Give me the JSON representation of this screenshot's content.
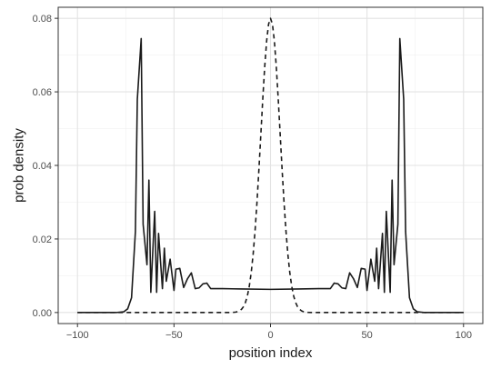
{
  "chart_data": {
    "type": "line",
    "xlabel": "position index",
    "ylabel": "prob density",
    "xlim": [
      -110,
      110
    ],
    "ylim": [
      -0.003,
      0.083
    ],
    "grid": true,
    "x_ticks": [
      -100,
      -50,
      0,
      50,
      100
    ],
    "x_tick_labels": [
      "−100",
      "−50",
      "0",
      "50",
      "100"
    ],
    "y_ticks": [
      0,
      0.02,
      0.04,
      0.06,
      0.08
    ],
    "y_tick_labels": [
      "0.00",
      "0.02",
      "0.04",
      "0.06",
      "0.08"
    ],
    "series": [
      {
        "style": "solid",
        "color": "#1a1a1a",
        "points": [
          [
            -100,
            0
          ],
          [
            -90,
            0
          ],
          [
            -80,
            0
          ],
          [
            -76,
            0.0002
          ],
          [
            -74,
            0.001
          ],
          [
            -72,
            0.004
          ],
          [
            -70,
            0.022
          ],
          [
            -69,
            0.058
          ],
          [
            -67,
            0.0745
          ],
          [
            -66,
            0.024
          ],
          [
            -64,
            0.013
          ],
          [
            -63,
            0.036
          ],
          [
            -62,
            0.0055
          ],
          [
            -60,
            0.0275
          ],
          [
            -59,
            0.0055
          ],
          [
            -58,
            0.0215
          ],
          [
            -56,
            0.0065
          ],
          [
            -55,
            0.0175
          ],
          [
            -54,
            0.0085
          ],
          [
            -52,
            0.0145
          ],
          [
            -50,
            0.006
          ],
          [
            -49,
            0.0118
          ],
          [
            -47,
            0.012
          ],
          [
            -45,
            0.0068
          ],
          [
            -43,
            0.0092
          ],
          [
            -41,
            0.0108
          ],
          [
            -39,
            0.0065
          ],
          [
            -37,
            0.0067
          ],
          [
            -35,
            0.0078
          ],
          [
            -33,
            0.008
          ],
          [
            -31,
            0.0065
          ],
          [
            -25,
            0.0065
          ],
          [
            -15,
            0.0064
          ],
          [
            0,
            0.0063
          ],
          [
            15,
            0.0064
          ],
          [
            25,
            0.0065
          ],
          [
            31,
            0.0065
          ],
          [
            33,
            0.008
          ],
          [
            35,
            0.0078
          ],
          [
            37,
            0.0067
          ],
          [
            39,
            0.0065
          ],
          [
            41,
            0.0108
          ],
          [
            43,
            0.0092
          ],
          [
            45,
            0.0068
          ],
          [
            47,
            0.012
          ],
          [
            49,
            0.0118
          ],
          [
            50,
            0.006
          ],
          [
            52,
            0.0145
          ],
          [
            54,
            0.0085
          ],
          [
            55,
            0.0175
          ],
          [
            56,
            0.0065
          ],
          [
            58,
            0.0215
          ],
          [
            59,
            0.0055
          ],
          [
            60,
            0.0275
          ],
          [
            62,
            0.0055
          ],
          [
            63,
            0.036
          ],
          [
            64,
            0.013
          ],
          [
            66,
            0.024
          ],
          [
            67,
            0.0745
          ],
          [
            69,
            0.058
          ],
          [
            70,
            0.022
          ],
          [
            72,
            0.004
          ],
          [
            74,
            0.001
          ],
          [
            76,
            0.0002
          ],
          [
            80,
            0
          ],
          [
            90,
            0
          ],
          [
            100,
            0
          ]
        ]
      },
      {
        "style": "dashed",
        "color": "#1a1a1a",
        "gaussian": {
          "mean": 0,
          "sd": 5,
          "peak": 0.08,
          "x_from": -100,
          "x_to": 100,
          "step": 1
        }
      }
    ]
  }
}
